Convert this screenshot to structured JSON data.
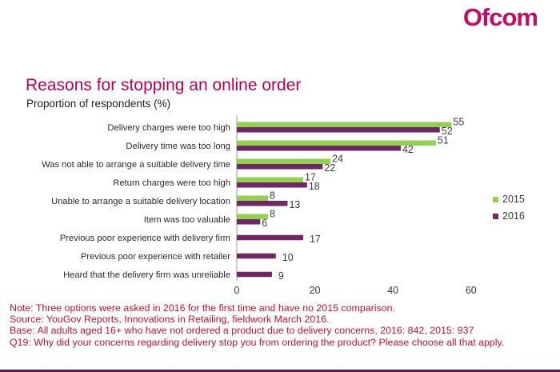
{
  "logo_text": "Ofcom",
  "colors": {
    "brand": "#c60b63",
    "series_2015": "#92d050",
    "series_2016": "#6e2665",
    "notes": "#c8102e"
  },
  "notes": [
    "Note: Three options were asked in 2016 for the first time and have no 2015 comparison.",
    "Source: YouGov Reports, Innovations in Retailing, fieldwork March 2016.",
    "Base: All adults aged 16+ who have not ordered a product  due to delivery concerns, 2016:  842, 2015: 937",
    "Q19: Why did your concerns regarding delivery stop you from ordering the product? Please choose all that apply."
  ],
  "chart_data": {
    "type": "bar",
    "orientation": "horizontal",
    "title": "Reasons for stopping an online order",
    "subtitle": "Proportion of respondents (%)",
    "categories": [
      "Delivery charges were too high",
      "Delivery time was too long",
      "Was not able to arrange a suitable delivery time",
      "Return charges were too high",
      "Unable to arrange a suitable delivery location",
      "Item was too valuable",
      "Previous poor experience with delivery firm",
      "Previous poor experience with retailer",
      "Heard that the delivery firm was unreliable"
    ],
    "series": [
      {
        "name": "2015",
        "color": "#92d050",
        "values": [
          55,
          51,
          24,
          17,
          8,
          8,
          null,
          null,
          null
        ]
      },
      {
        "name": "2016",
        "color": "#6e2665",
        "values": [
          52,
          42,
          22,
          18,
          13,
          6,
          17,
          10,
          9
        ]
      }
    ],
    "xlim": [
      0,
      60
    ],
    "xticks": [
      "0",
      "20",
      "40",
      "60"
    ],
    "grid": false,
    "legend_position": "right"
  }
}
